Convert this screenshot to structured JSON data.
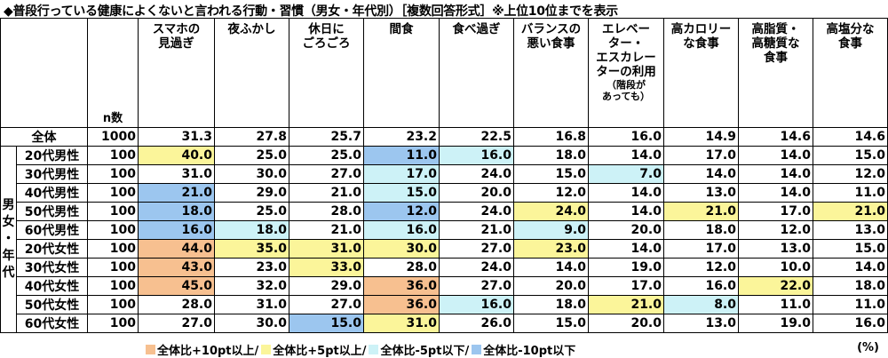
{
  "title": "◆普段行っている健康によくないと言われる行動・習慣（男女・年代別）［複数回答形式］※上位10位までを表示",
  "chart_data": {
    "type": "table",
    "n_header": "n数",
    "columns": [
      [
        "スマホの",
        "見過ぎ"
      ],
      [
        "夜ふかし"
      ],
      [
        "休日に",
        "ごろごろ"
      ],
      [
        "間食"
      ],
      [
        "食べ過ぎ"
      ],
      [
        "バランスの",
        "悪い食事"
      ],
      [
        "エレベー",
        "ター・",
        "エスカレー",
        "ターの利用"
      ],
      [
        "高カロリー",
        "な食事"
      ],
      [
        "高脂質・",
        "高糖質な",
        "食事"
      ],
      [
        "高塩分な",
        "食事"
      ]
    ],
    "column_note": [
      "（階段が",
      "あっても）"
    ],
    "side_label": [
      "男",
      "女",
      "・",
      "年",
      "代"
    ],
    "rows": [
      {
        "label": "全体",
        "n": "1000",
        "values": [
          "31.3",
          "27.8",
          "25.7",
          "23.2",
          "22.5",
          "16.8",
          "16.0",
          "14.9",
          "14.6",
          "14.6"
        ],
        "colors": [
          "",
          "",
          "",
          "",
          "",
          "",
          "",
          "",
          "",
          ""
        ]
      },
      {
        "label": "20代男性",
        "n": "100",
        "values": [
          "40.0",
          "25.0",
          "25.0",
          "11.0",
          "16.0",
          "18.0",
          "14.0",
          "17.0",
          "14.0",
          "15.0"
        ],
        "colors": [
          "yl",
          "",
          "",
          "bl",
          "lc",
          "",
          "",
          "",
          "",
          ""
        ]
      },
      {
        "label": "30代男性",
        "n": "100",
        "values": [
          "31.0",
          "30.0",
          "27.0",
          "17.0",
          "24.0",
          "15.0",
          "7.0",
          "14.0",
          "14.0",
          "12.0"
        ],
        "colors": [
          "",
          "",
          "",
          "lc",
          "",
          "",
          "lc",
          "",
          "",
          ""
        ]
      },
      {
        "label": "40代男性",
        "n": "100",
        "values": [
          "21.0",
          "29.0",
          "21.0",
          "15.0",
          "20.0",
          "12.0",
          "14.0",
          "13.0",
          "14.0",
          "11.0"
        ],
        "colors": [
          "bl",
          "",
          "",
          "lc",
          "",
          "",
          "",
          "",
          "",
          ""
        ]
      },
      {
        "label": "50代男性",
        "n": "100",
        "values": [
          "18.0",
          "25.0",
          "28.0",
          "12.0",
          "24.0",
          "24.0",
          "14.0",
          "21.0",
          "17.0",
          "21.0"
        ],
        "colors": [
          "bl",
          "",
          "",
          "bl",
          "",
          "yl",
          "",
          "yl",
          "",
          "yl"
        ]
      },
      {
        "label": "60代男性",
        "n": "100",
        "values": [
          "16.0",
          "18.0",
          "21.0",
          "16.0",
          "21.0",
          "9.0",
          "20.0",
          "18.0",
          "12.0",
          "13.0"
        ],
        "colors": [
          "bl",
          "lc",
          "",
          "lc",
          "",
          "lc",
          "",
          "",
          "",
          ""
        ]
      },
      {
        "label": "20代女性",
        "n": "100",
        "values": [
          "44.0",
          "35.0",
          "31.0",
          "30.0",
          "27.0",
          "23.0",
          "14.0",
          "17.0",
          "13.0",
          "15.0"
        ],
        "colors": [
          "or",
          "yl",
          "yl",
          "yl",
          "",
          "yl",
          "",
          "",
          "",
          ""
        ]
      },
      {
        "label": "30代女性",
        "n": "100",
        "values": [
          "43.0",
          "23.0",
          "33.0",
          "28.0",
          "24.0",
          "14.0",
          "19.0",
          "12.0",
          "10.0",
          "14.0"
        ],
        "colors": [
          "or",
          "",
          "yl",
          "",
          "",
          "",
          "",
          "",
          "",
          ""
        ]
      },
      {
        "label": "40代女性",
        "n": "100",
        "values": [
          "45.0",
          "32.0",
          "29.0",
          "36.0",
          "27.0",
          "20.0",
          "17.0",
          "16.0",
          "22.0",
          "18.0"
        ],
        "colors": [
          "or",
          "",
          "",
          "or",
          "",
          "",
          "",
          "",
          "yl",
          ""
        ]
      },
      {
        "label": "50代女性",
        "n": "100",
        "values": [
          "28.0",
          "31.0",
          "27.0",
          "36.0",
          "16.0",
          "18.0",
          "21.0",
          "8.0",
          "11.0",
          "11.0"
        ],
        "colors": [
          "",
          "",
          "",
          "or",
          "lc",
          "",
          "yl",
          "lc",
          "",
          ""
        ]
      },
      {
        "label": "60代女性",
        "n": "100",
        "values": [
          "27.0",
          "30.0",
          "15.0",
          "31.0",
          "26.0",
          "15.0",
          "20.0",
          "13.0",
          "19.0",
          "16.0"
        ],
        "colors": [
          "",
          "",
          "bl",
          "yl",
          "",
          "",
          "",
          "",
          "",
          ""
        ]
      }
    ],
    "legend": [
      {
        "label": "全体比+10pt以上/",
        "color": "#f7c090"
      },
      {
        "label": "全体比+5pt以上/",
        "color": "#fbf59a"
      },
      {
        "label": "全体比-5pt以下/",
        "color": "#cdf2f7"
      },
      {
        "label": "全体比-10pt以下",
        "color": "#9cc6ef"
      }
    ],
    "unit": "(%)"
  }
}
